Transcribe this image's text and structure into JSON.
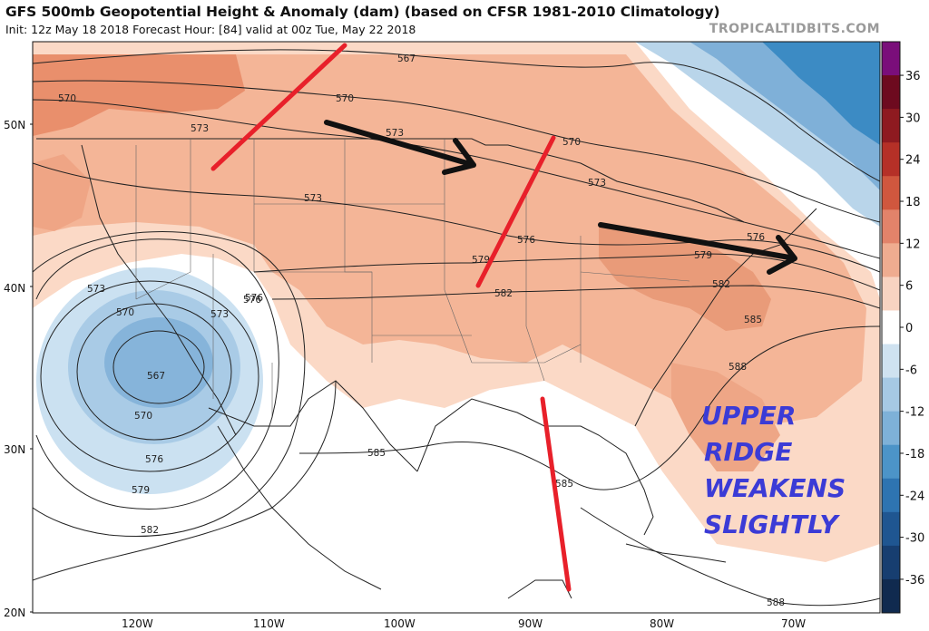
{
  "header": {
    "title": "GFS 500mb Geopotential Height & Anomaly (dam) (based on CFSR 1981-2010 Climatology)",
    "subtitle": "Init: 12z May 18 2018   Forecast Hour: [84]   valid at 00z Tue, May 22 2018",
    "site": "TROPICALTIDBITS.COM"
  },
  "map": {
    "lat_labels": [
      "50N",
      "40N",
      "30N",
      "20N"
    ],
    "lon_labels": [
      "120W",
      "110W",
      "100W",
      "90W",
      "80W",
      "70W"
    ],
    "contour_labels": [
      "567",
      "570",
      "573",
      "573",
      "570",
      "573",
      "570",
      "573",
      "576",
      "576",
      "576",
      "579",
      "579",
      "582",
      "582",
      "585",
      "588",
      "588",
      "573",
      "570",
      "573",
      "576",
      "567",
      "570",
      "576",
      "579",
      "582",
      "585",
      "585"
    ],
    "annotation_lines": [
      "UPPER",
      "RIDGE",
      "WEAKENS",
      "SLIGHTLY"
    ],
    "colors": {
      "positive_light": "#fbd9c6",
      "positive_mid": "#f4b597",
      "positive_strong": "#e98f6c",
      "negative_light": "#b9d5ea",
      "negative_mid": "#8ab8dc",
      "negative_strong": "#3c8bc4",
      "red_line": "#e8202a",
      "arrow": "#111111",
      "annotation": "#3b3bd6"
    }
  },
  "colorbar": {
    "ticks": [
      "36",
      "30",
      "24",
      "18",
      "12",
      "6",
      "0",
      "-6",
      "-12",
      "-18",
      "-24",
      "-30",
      "-36"
    ],
    "colors": [
      "#7a0e7a",
      "#6d0a1f",
      "#8e1a20",
      "#b53027",
      "#d0573e",
      "#e2836a",
      "#efac90",
      "#f8d3c1",
      "#ffffff",
      "#cfe2f0",
      "#a6c9e4",
      "#7eb1d8",
      "#4c94c8",
      "#2e74b1",
      "#1f5691",
      "#173e70",
      "#102a4f"
    ]
  }
}
